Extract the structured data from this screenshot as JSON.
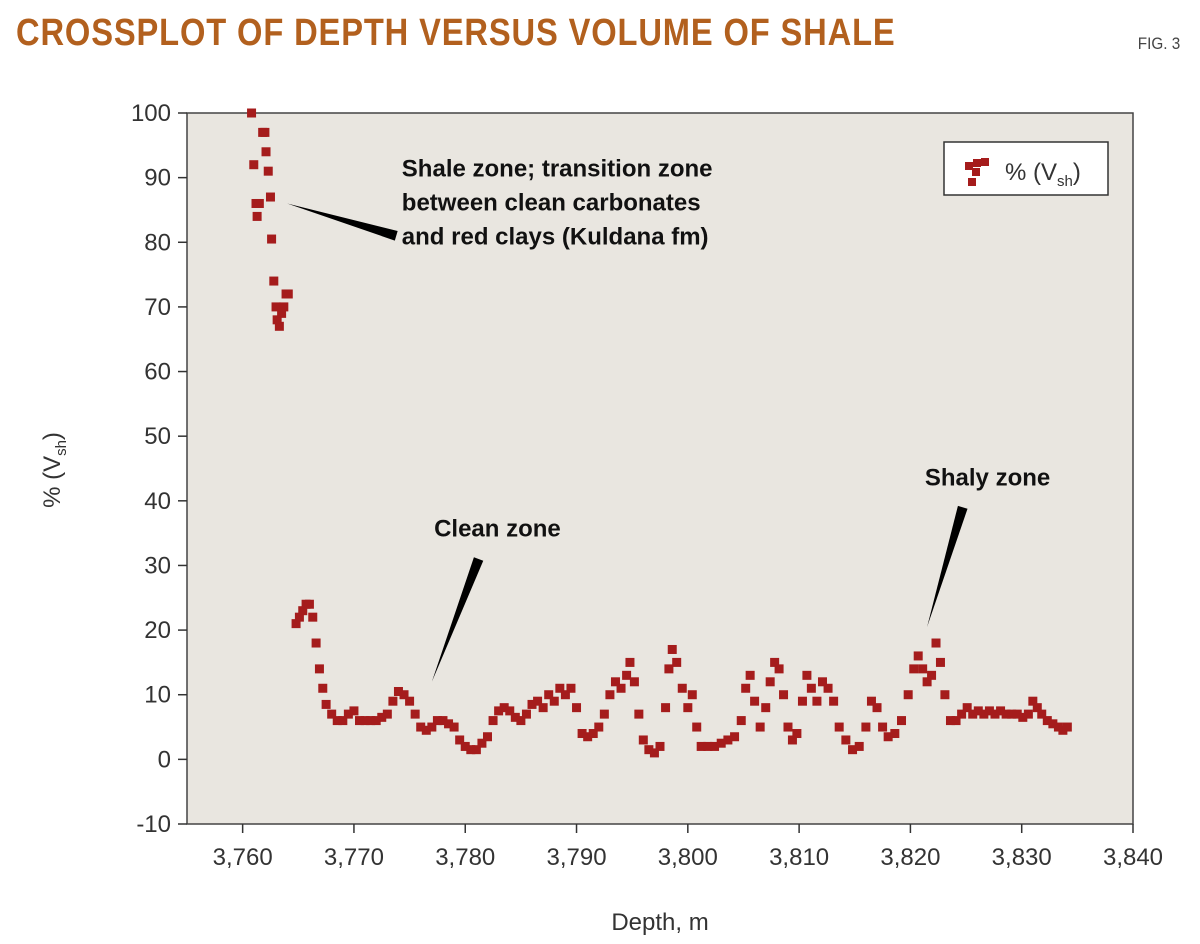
{
  "figure": {
    "title": "CROSSPLOT OF DEPTH VERSUS VOLUME OF SHALE",
    "fig_number": "FIG. 3"
  },
  "colors": {
    "plot_background": "#e9e6e0",
    "marker": "#a51c1c",
    "title": "#b2601e"
  },
  "chart_data": {
    "type": "scatter",
    "title": "CROSSPLOT OF DEPTH VERSUS VOLUME OF SHALE",
    "xlabel": "Depth, m",
    "ylabel": "% (V",
    "ylabel_sub": "sh",
    "ylabel_close": ")",
    "xlim": [
      3755,
      3840
    ],
    "ylim": [
      -10,
      100
    ],
    "x_ticks": [
      3760,
      3770,
      3780,
      3790,
      3800,
      3810,
      3820,
      3830,
      3840
    ],
    "x_tick_labels": [
      "3,760",
      "3,770",
      "3,780",
      "3,790",
      "3,800",
      "3,810",
      "3,820",
      "3,830",
      "3,840"
    ],
    "y_ticks": [
      -10,
      0,
      10,
      20,
      30,
      40,
      50,
      60,
      70,
      80,
      90,
      100
    ],
    "y_tick_labels": [
      "-10",
      "0",
      "10",
      "20",
      "30",
      "40",
      "50",
      "60",
      "70",
      "80",
      "90",
      "100"
    ],
    "grid": false,
    "legend_position": "top-right",
    "legend": {
      "text": "% (V",
      "sub": "sh",
      "close": ")"
    },
    "series": [
      {
        "name": "% (Vsh)",
        "points": [
          [
            3760.8,
            100
          ],
          [
            3761.0,
            92
          ],
          [
            3761.2,
            86
          ],
          [
            3761.3,
            84
          ],
          [
            3761.5,
            86
          ],
          [
            3761.8,
            97
          ],
          [
            3762.0,
            97
          ],
          [
            3762.1,
            94
          ],
          [
            3762.3,
            91
          ],
          [
            3762.5,
            87
          ],
          [
            3762.6,
            80.5
          ],
          [
            3762.8,
            74
          ],
          [
            3763.0,
            70
          ],
          [
            3763.1,
            68
          ],
          [
            3763.3,
            67
          ],
          [
            3763.5,
            69
          ],
          [
            3763.7,
            70
          ],
          [
            3763.9,
            72
          ],
          [
            3764.1,
            72
          ],
          [
            3764.8,
            21
          ],
          [
            3765.1,
            22
          ],
          [
            3765.4,
            23
          ],
          [
            3765.7,
            24
          ],
          [
            3766.0,
            24
          ],
          [
            3766.3,
            22
          ],
          [
            3766.6,
            18
          ],
          [
            3766.9,
            14
          ],
          [
            3767.2,
            11
          ],
          [
            3767.5,
            8.5
          ],
          [
            3768.0,
            7
          ],
          [
            3768.5,
            6
          ],
          [
            3769.0,
            6
          ],
          [
            3769.5,
            7
          ],
          [
            3770.0,
            7.5
          ],
          [
            3770.5,
            6
          ],
          [
            3771.0,
            6
          ],
          [
            3771.5,
            6
          ],
          [
            3772.0,
            6
          ],
          [
            3772.5,
            6.5
          ],
          [
            3773.0,
            7
          ],
          [
            3773.5,
            9
          ],
          [
            3774.0,
            10.5
          ],
          [
            3774.5,
            10
          ],
          [
            3775.0,
            9
          ],
          [
            3775.5,
            7
          ],
          [
            3776.0,
            5
          ],
          [
            3776.5,
            4.5
          ],
          [
            3777.0,
            5
          ],
          [
            3777.5,
            6
          ],
          [
            3778.0,
            6
          ],
          [
            3778.5,
            5.5
          ],
          [
            3779.0,
            5
          ],
          [
            3779.5,
            3
          ],
          [
            3780.0,
            2
          ],
          [
            3780.5,
            1.5
          ],
          [
            3781.0,
            1.5
          ],
          [
            3781.5,
            2.5
          ],
          [
            3782.0,
            3.5
          ],
          [
            3782.5,
            6
          ],
          [
            3783.0,
            7.5
          ],
          [
            3783.5,
            8
          ],
          [
            3784.0,
            7.5
          ],
          [
            3784.5,
            6.5
          ],
          [
            3785.0,
            6
          ],
          [
            3785.5,
            7
          ],
          [
            3786.0,
            8.5
          ],
          [
            3786.5,
            9
          ],
          [
            3787.0,
            8
          ],
          [
            3787.5,
            10
          ],
          [
            3788.0,
            9
          ],
          [
            3788.5,
            11
          ],
          [
            3789.0,
            10
          ],
          [
            3789.5,
            11
          ],
          [
            3790.0,
            8
          ],
          [
            3790.5,
            4
          ],
          [
            3791.0,
            3.5
          ],
          [
            3791.5,
            4
          ],
          [
            3792.0,
            5
          ],
          [
            3792.5,
            7
          ],
          [
            3793.0,
            10
          ],
          [
            3793.5,
            12
          ],
          [
            3794.0,
            11
          ],
          [
            3794.5,
            13
          ],
          [
            3794.8,
            15
          ],
          [
            3795.2,
            12
          ],
          [
            3795.6,
            7
          ],
          [
            3796.0,
            3
          ],
          [
            3796.5,
            1.5
          ],
          [
            3797.0,
            1
          ],
          [
            3797.5,
            2
          ],
          [
            3798.0,
            8
          ],
          [
            3798.3,
            14
          ],
          [
            3798.6,
            17
          ],
          [
            3799.0,
            15
          ],
          [
            3799.5,
            11
          ],
          [
            3800.0,
            8
          ],
          [
            3800.4,
            10
          ],
          [
            3800.8,
            5
          ],
          [
            3801.2,
            2
          ],
          [
            3801.8,
            2
          ],
          [
            3802.4,
            2
          ],
          [
            3803.0,
            2.5
          ],
          [
            3803.6,
            3
          ],
          [
            3804.2,
            3.5
          ],
          [
            3804.8,
            6
          ],
          [
            3805.2,
            11
          ],
          [
            3805.6,
            13
          ],
          [
            3806.0,
            9
          ],
          [
            3806.5,
            5
          ],
          [
            3807.0,
            8
          ],
          [
            3807.4,
            12
          ],
          [
            3807.8,
            15
          ],
          [
            3808.2,
            14
          ],
          [
            3808.6,
            10
          ],
          [
            3809.0,
            5
          ],
          [
            3809.4,
            3
          ],
          [
            3809.8,
            4
          ],
          [
            3810.3,
            9
          ],
          [
            3810.7,
            13
          ],
          [
            3811.1,
            11
          ],
          [
            3811.6,
            9
          ],
          [
            3812.1,
            12
          ],
          [
            3812.6,
            11
          ],
          [
            3813.1,
            9
          ],
          [
            3813.6,
            5
          ],
          [
            3814.2,
            3
          ],
          [
            3814.8,
            1.5
          ],
          [
            3815.4,
            2
          ],
          [
            3816.0,
            5
          ],
          [
            3816.5,
            9
          ],
          [
            3817.0,
            8
          ],
          [
            3817.5,
            5
          ],
          [
            3818.0,
            3.5
          ],
          [
            3818.6,
            4
          ],
          [
            3819.2,
            6
          ],
          [
            3819.8,
            10
          ],
          [
            3820.3,
            14
          ],
          [
            3820.7,
            16
          ],
          [
            3821.1,
            14
          ],
          [
            3821.5,
            12
          ],
          [
            3821.9,
            13
          ],
          [
            3822.3,
            18
          ],
          [
            3822.7,
            15
          ],
          [
            3823.1,
            10
          ],
          [
            3823.6,
            6
          ],
          [
            3824.1,
            6
          ],
          [
            3824.6,
            7
          ],
          [
            3825.1,
            8
          ],
          [
            3825.6,
            7
          ],
          [
            3826.1,
            7.5
          ],
          [
            3826.6,
            7
          ],
          [
            3827.1,
            7.5
          ],
          [
            3827.6,
            7
          ],
          [
            3828.1,
            7.5
          ],
          [
            3828.6,
            7
          ],
          [
            3829.1,
            7
          ],
          [
            3829.6,
            7
          ],
          [
            3830.1,
            6.5
          ],
          [
            3830.6,
            7
          ],
          [
            3831.0,
            9
          ],
          [
            3831.4,
            8
          ],
          [
            3831.8,
            7
          ],
          [
            3832.3,
            6
          ],
          [
            3832.8,
            5.5
          ],
          [
            3833.3,
            5
          ],
          [
            3833.7,
            4.5
          ],
          [
            3834.1,
            5
          ]
        ]
      }
    ],
    "annotations": [
      {
        "lines": [
          "Shale zone; transition zone",
          "between clean carbonates",
          "and red clays (Kuldana fm)"
        ],
        "text_anchor": [
          3774.3,
          90.2
        ],
        "pointer_tip": [
          3764.0,
          86.0
        ],
        "pointer_base": [
          3773.8,
          81.0
        ]
      },
      {
        "lines": [
          "Clean zone"
        ],
        "text_anchor": [
          3777.2,
          34.5
        ],
        "pointer_tip": [
          3777.0,
          12.0
        ],
        "pointer_base": [
          3781.2,
          31.0
        ]
      },
      {
        "lines": [
          "Shaly zone"
        ],
        "text_anchor": [
          3821.3,
          42.4
        ],
        "pointer_tip": [
          3821.5,
          20.5
        ],
        "pointer_base": [
          3824.7,
          39.0
        ]
      }
    ]
  }
}
